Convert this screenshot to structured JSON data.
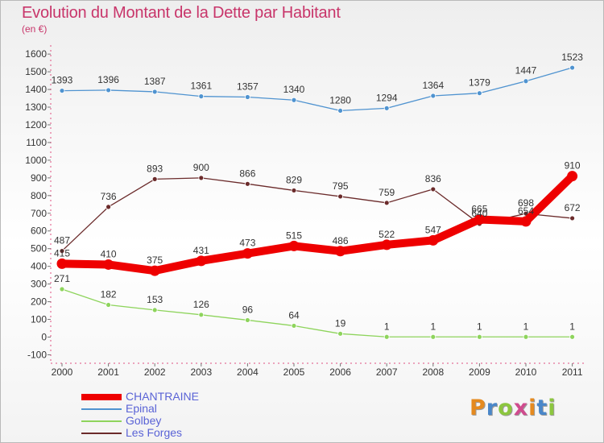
{
  "title": "Evolution du Montant de la Dette par Habitant",
  "subtitle": "(en €)",
  "logo": {
    "text": "Proxiti",
    "letter_colors": [
      "#e58a1f",
      "#4a87c9",
      "#8cc63f",
      "#d04b8e",
      "#e58a1f",
      "#4a87c9",
      "#8cc63f"
    ]
  },
  "chart_data": {
    "type": "line",
    "title": "Evolution du Montant de la Dette par Habitant",
    "subtitle": "(en €)",
    "x": [
      "2000",
      "2001",
      "2002",
      "2003",
      "2004",
      "2005",
      "2006",
      "2007",
      "2008",
      "2009",
      "2010",
      "2011"
    ],
    "ylim": [
      -100,
      1600
    ],
    "yticks": [
      -100,
      0,
      100,
      200,
      300,
      400,
      500,
      600,
      700,
      800,
      900,
      1000,
      1100,
      1200,
      1300,
      1400,
      1500,
      1600
    ],
    "grid": false,
    "legend_position": "bottom-left",
    "series": [
      {
        "name": "CHANTRAINE",
        "color": "#ee0000",
        "emphasis": true,
        "values": [
          415,
          410,
          375,
          431,
          473,
          515,
          486,
          522,
          547,
          665,
          654,
          910
        ],
        "labels": [
          "415",
          "410",
          "375",
          "431",
          "473",
          "515",
          "486",
          "522",
          "547",
          "665",
          "654",
          "910"
        ]
      },
      {
        "name": "Epinal",
        "color": "#4f93d0",
        "values": [
          1393,
          1396,
          1387,
          1361,
          1357,
          1340,
          1280,
          1294,
          1364,
          1379,
          1447,
          1523
        ],
        "labels": [
          "1393",
          "1396",
          "1387",
          "1361",
          "1357",
          "1340",
          "1280",
          "1294",
          "1364",
          "1379",
          "1447",
          "1523"
        ]
      },
      {
        "name": "Golbey",
        "color": "#8ed45c",
        "values": [
          271,
          182,
          153,
          126,
          96,
          64,
          19,
          1,
          1,
          1,
          1,
          1
        ],
        "labels": [
          "271",
          "182",
          "153",
          "126",
          "96",
          "64",
          "19",
          "1",
          "1",
          "1",
          "1",
          "1"
        ]
      },
      {
        "name": "Les Forges",
        "color": "#6b2b2b",
        "values": [
          487,
          736,
          893,
          900,
          866,
          829,
          795,
          759,
          836,
          640,
          698,
          672
        ],
        "labels": [
          "487",
          "736",
          "893",
          "900",
          "866",
          "829",
          "795",
          "759",
          "836",
          "640",
          "698",
          "672"
        ]
      }
    ]
  }
}
